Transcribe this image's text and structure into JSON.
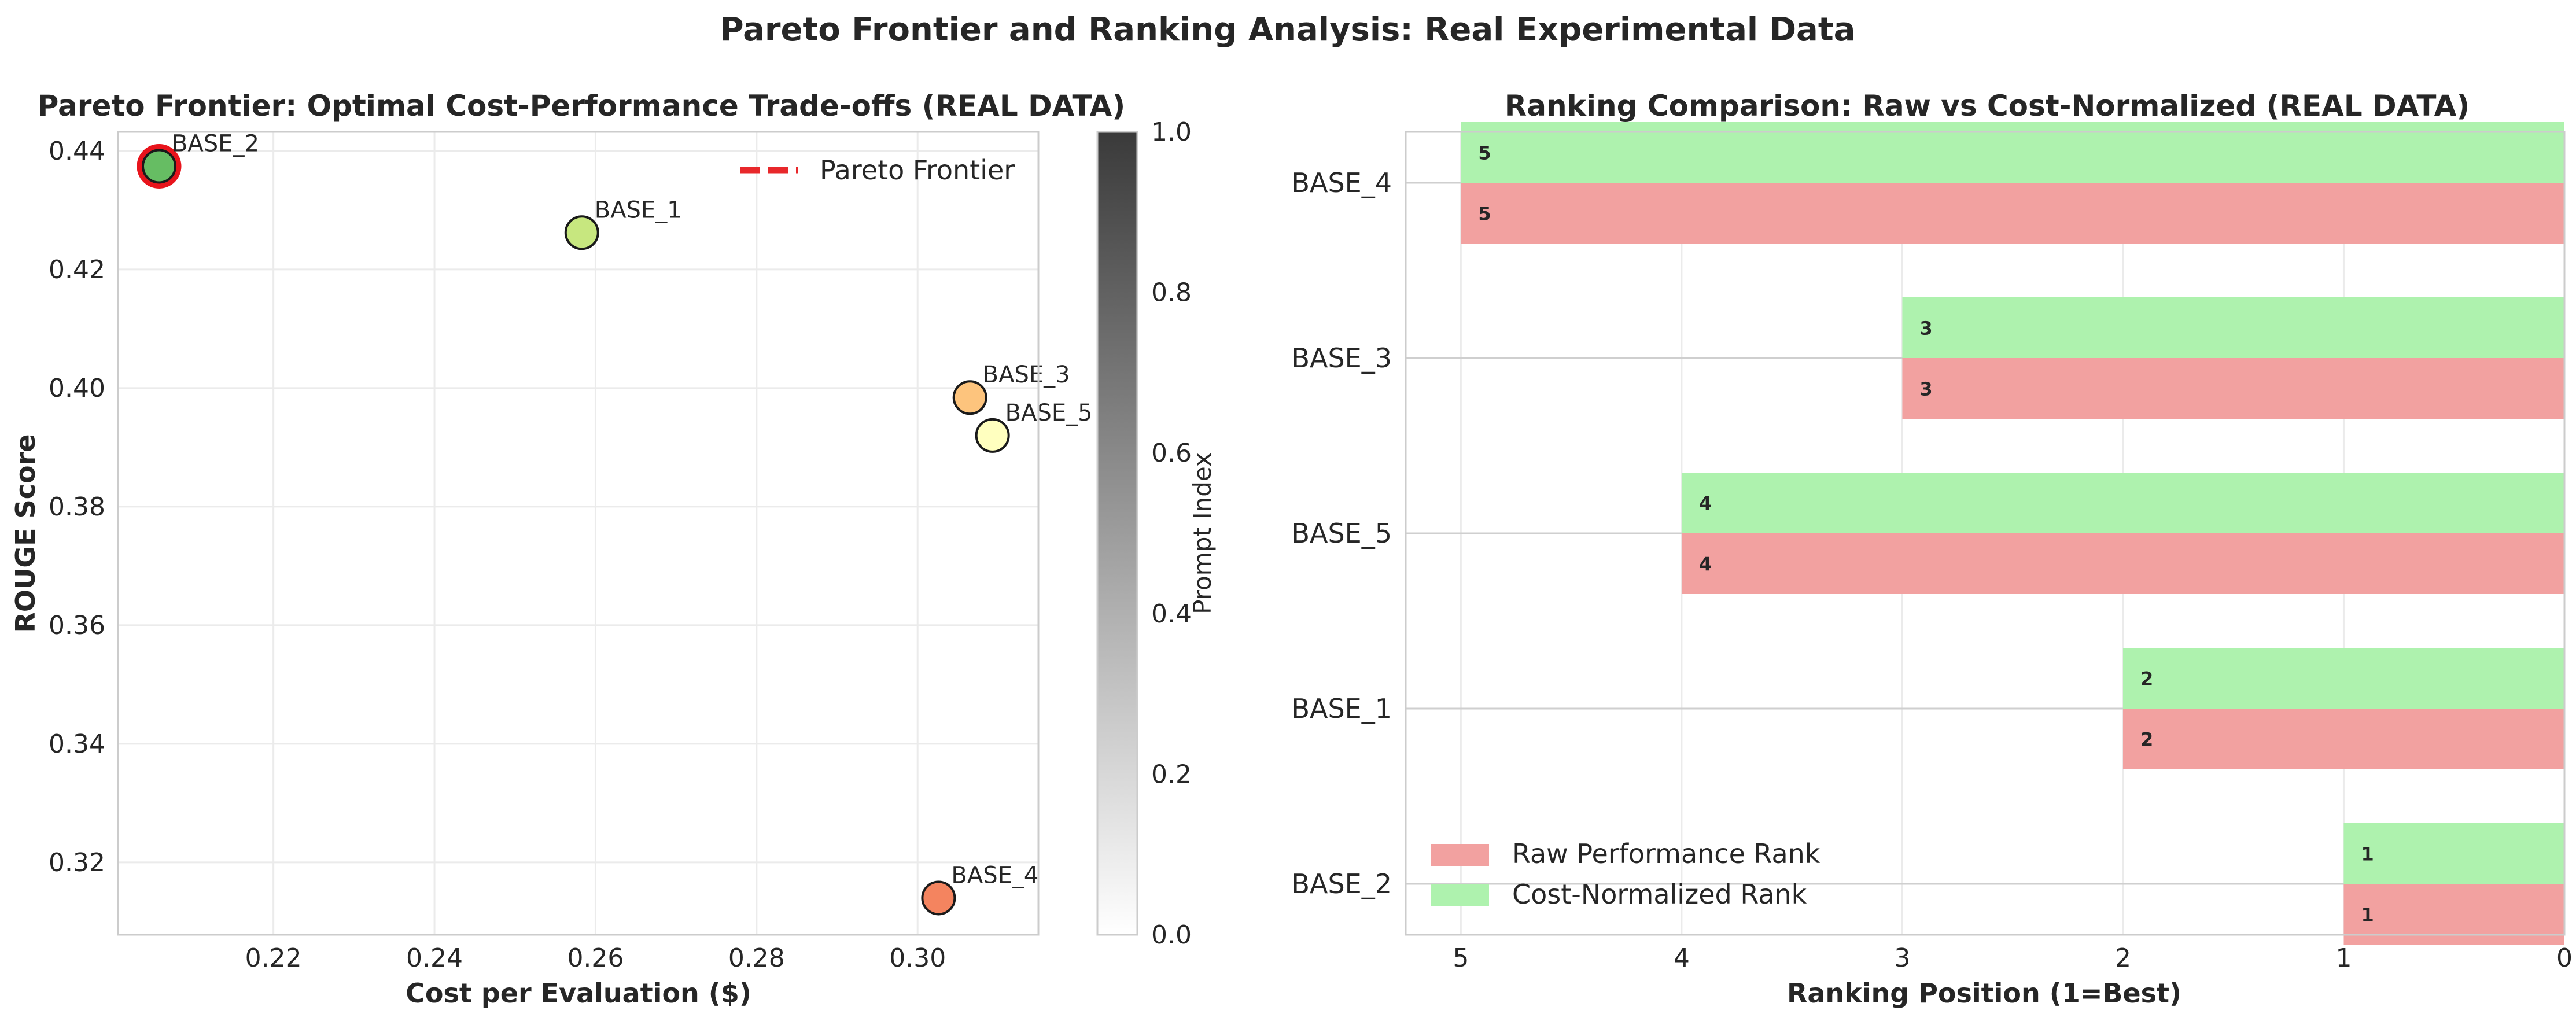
{
  "title": "Pareto Frontier and Ranking Analysis: Real Experimental Data",
  "chart_data": [
    {
      "type": "scatter",
      "title": "Pareto Frontier: Optimal Cost-Performance Trade-offs (REAL DATA)",
      "xlabel": "Cost per Evaluation ($)",
      "ylabel": "ROUGE Score",
      "xlim": [
        0.2007,
        0.315
      ],
      "ylim": [
        0.3078,
        0.4432
      ],
      "xticks": [
        "0.22",
        "0.24",
        "0.26",
        "0.28",
        "0.30"
      ],
      "xtick_values": [
        0.22,
        0.24,
        0.26,
        0.28,
        0.3
      ],
      "yticks": [
        "0.32",
        "0.34",
        "0.36",
        "0.38",
        "0.40",
        "0.42",
        "0.44"
      ],
      "ytick_values": [
        0.32,
        0.34,
        0.36,
        0.38,
        0.4,
        0.42,
        0.44
      ],
      "grid": true,
      "legend": {
        "position": "top-right",
        "entries": [
          {
            "label": "Pareto Frontier",
            "color": "#e8282b",
            "style": "dashed"
          }
        ]
      },
      "points": [
        {
          "label": "BASE_2",
          "x": 0.2058,
          "y": 0.4374,
          "color": "#66bd63",
          "pareto": true
        },
        {
          "label": "BASE_1",
          "x": 0.2583,
          "y": 0.4262,
          "color": "#c7e77f",
          "pareto": false
        },
        {
          "label": "BASE_3",
          "x": 0.3065,
          "y": 0.3984,
          "color": "#fdc47d",
          "pareto": false
        },
        {
          "label": "BASE_5",
          "x": 0.3093,
          "y": 0.392,
          "color": "#ffffbf",
          "pareto": false
        },
        {
          "label": "BASE_4",
          "x": 0.3026,
          "y": 0.314,
          "color": "#f4845f",
          "pareto": false
        }
      ],
      "pareto_highlight_color": "#e8141c",
      "colorbar": {
        "label": "Prompt Index",
        "range": [
          0.0,
          1.0
        ],
        "ticks": [
          "0.0",
          "0.2",
          "0.4",
          "0.6",
          "0.8",
          "1.0"
        ],
        "tick_values": [
          0.0,
          0.2,
          0.4,
          0.6,
          0.8,
          1.0
        ],
        "colors": [
          "#ffffff",
          "#3a3a3a"
        ]
      }
    },
    {
      "type": "bar",
      "orientation": "horizontal",
      "title": "Ranking Comparison: Raw vs Cost-Normalized (REAL DATA)",
      "xlabel": "Ranking Position (1=Best)",
      "ylabel": "",
      "xlim": [
        5.25,
        0
      ],
      "xticks": [
        "5",
        "4",
        "3",
        "2",
        "1",
        "0"
      ],
      "xtick_values": [
        5,
        4,
        3,
        2,
        1,
        0
      ],
      "grid": true,
      "categories": [
        "BASE_2",
        "BASE_1",
        "BASE_5",
        "BASE_3",
        "BASE_4"
      ],
      "series": [
        {
          "name": "Raw Performance Rank",
          "color": "#f2a1a0",
          "values": [
            1,
            2,
            4,
            3,
            5
          ]
        },
        {
          "name": "Cost-Normalized Rank",
          "color": "#aef2ae",
          "values": [
            1,
            2,
            4,
            3,
            5
          ]
        }
      ],
      "legend": {
        "position": "bottom-left"
      }
    }
  ]
}
